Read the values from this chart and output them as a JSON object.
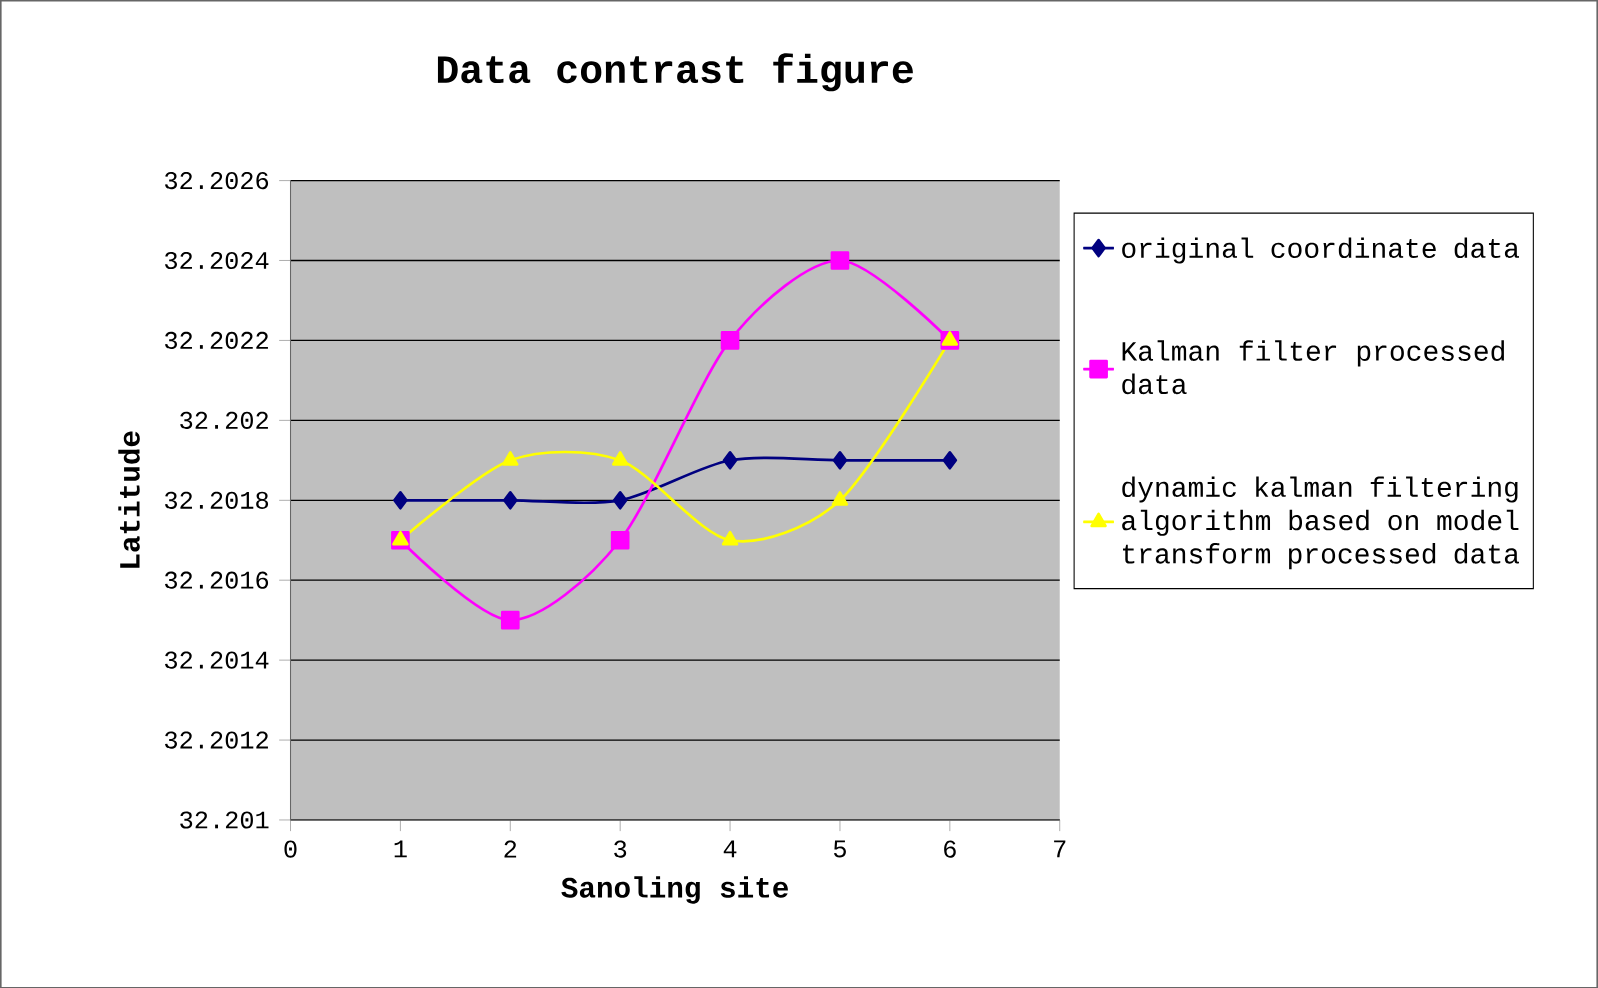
{
  "chart_data": {
    "type": "line",
    "title": "Data contrast figure",
    "xlabel": "Sanoling site",
    "ylabel": "Latitude",
    "x": [
      1,
      2,
      3,
      4,
      5,
      6
    ],
    "xlim": [
      0,
      7
    ],
    "xticks": [
      0,
      1,
      2,
      3,
      4,
      5,
      6,
      7
    ],
    "ylim": [
      32.201,
      32.2026
    ],
    "yticks": [
      32.201,
      32.2012,
      32.2014,
      32.2016,
      32.2018,
      32.202,
      32.2022,
      32.2024,
      32.2026
    ],
    "grid": "y",
    "legend": "right",
    "series": [
      {
        "name": "original coordinate data",
        "color": "#000080",
        "marker": "diamond",
        "values": [
          32.2018,
          32.2018,
          32.2018,
          32.2019,
          32.2019,
          32.2019
        ]
      },
      {
        "name": "Kalman filter processed data",
        "color": "#ff00ff",
        "marker": "square",
        "values": [
          32.2017,
          32.2015,
          32.2017,
          32.2022,
          32.2024,
          32.2022
        ]
      },
      {
        "name": "dynamic kalman filtering algorithm based on model transform processed data",
        "color": "#ffff00",
        "marker": "triangle",
        "values": [
          32.2017,
          32.2019,
          32.2019,
          32.2017,
          32.2018,
          32.2022
        ]
      }
    ]
  }
}
